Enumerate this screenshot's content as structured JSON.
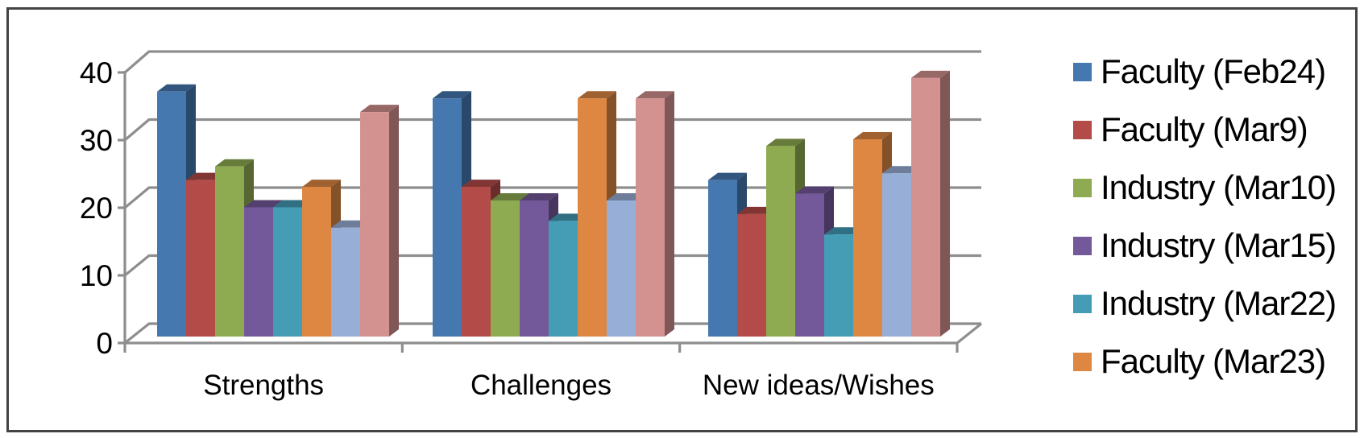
{
  "chart_data": {
    "type": "bar",
    "variant": "3d-clustered-column",
    "title": "",
    "xlabel": "",
    "ylabel": "",
    "categories": [
      "Strengths",
      "Challenges",
      "New ideas/Wishes"
    ],
    "series": [
      {
        "name": "Faculty (Feb24)",
        "color": "#4678b0",
        "in_legend": true,
        "values": [
          36,
          35,
          23
        ]
      },
      {
        "name": "Faculty (Mar9)",
        "color": "#b34b48",
        "in_legend": true,
        "values": [
          23,
          22,
          18
        ]
      },
      {
        "name": "Industry (Mar10)",
        "color": "#8fab51",
        "in_legend": true,
        "values": [
          25,
          20,
          28
        ]
      },
      {
        "name": "Industry (Mar15)",
        "color": "#74599a",
        "in_legend": true,
        "values": [
          19,
          20,
          21
        ]
      },
      {
        "name": "Industry (Mar22)",
        "color": "#449cb5",
        "in_legend": true,
        "values": [
          19,
          17,
          15
        ]
      },
      {
        "name": "Faculty (Mar23)",
        "color": "#dd8742",
        "in_legend": true,
        "values": [
          22,
          35,
          29
        ]
      },
      {
        "name": "",
        "color": "#97aed6",
        "in_legend": false,
        "values": [
          16,
          20,
          24
        ]
      },
      {
        "name": "",
        "color": "#d3918f",
        "in_legend": false,
        "values": [
          33,
          35,
          38
        ]
      }
    ],
    "y_axis": {
      "min": 0,
      "max": 40,
      "tick_step": 10,
      "tick_labels": [
        "0",
        "10",
        "20",
        "30",
        "40"
      ]
    },
    "legend": {
      "position": "right",
      "truncated": true
    },
    "gridlines": true,
    "grid_color": "#8e8e8e",
    "text_color": "#000000"
  }
}
